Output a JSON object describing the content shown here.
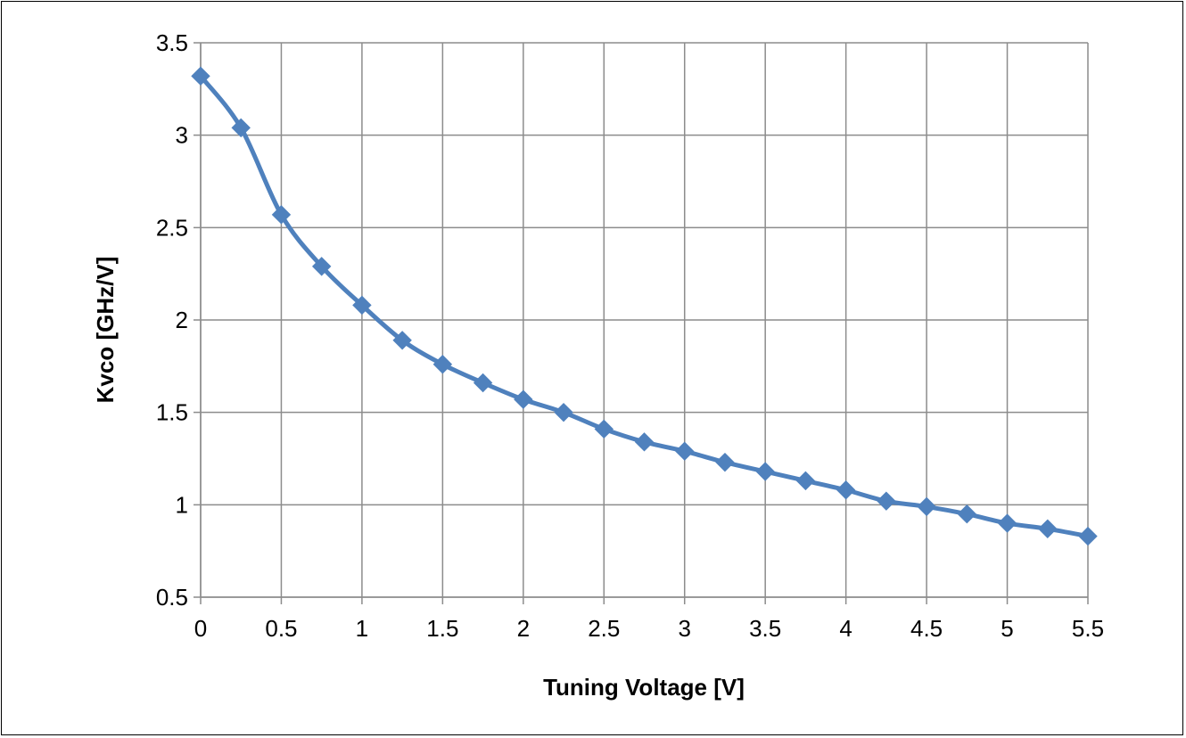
{
  "chart_data": {
    "type": "line",
    "title": "",
    "xlabel": "Tuning Voltage [V]",
    "ylabel": "Kvco [GHz/V]",
    "xlim": [
      0,
      5.5
    ],
    "ylim": [
      0.5,
      3.5
    ],
    "x_ticks": [
      "0",
      "0.5",
      "1",
      "1.5",
      "2",
      "2.5",
      "3",
      "3.5",
      "4",
      "4.5",
      "5",
      "5.5"
    ],
    "y_ticks": [
      "0.5",
      "1",
      "1.5",
      "2",
      "2.5",
      "3",
      "3.5"
    ],
    "grid": true,
    "legend": "none",
    "series_color": "#4F81BD",
    "marker": "diamond",
    "line_style": "smoothed",
    "series": [
      {
        "x": [
          0,
          0.25,
          0.5,
          0.75,
          1,
          1.25,
          1.5,
          1.75,
          2,
          2.25,
          2.5,
          2.75,
          3,
          3.25,
          3.5,
          3.75,
          4,
          4.25,
          4.5,
          4.75,
          5,
          5.25,
          5.5
        ],
        "values": [
          3.32,
          3.04,
          2.57,
          2.29,
          2.08,
          1.89,
          1.76,
          1.66,
          1.57,
          1.5,
          1.41,
          1.34,
          1.29,
          1.23,
          1.18,
          1.13,
          1.08,
          1.02,
          0.99,
          0.95,
          0.9,
          0.87,
          0.83
        ]
      }
    ]
  }
}
